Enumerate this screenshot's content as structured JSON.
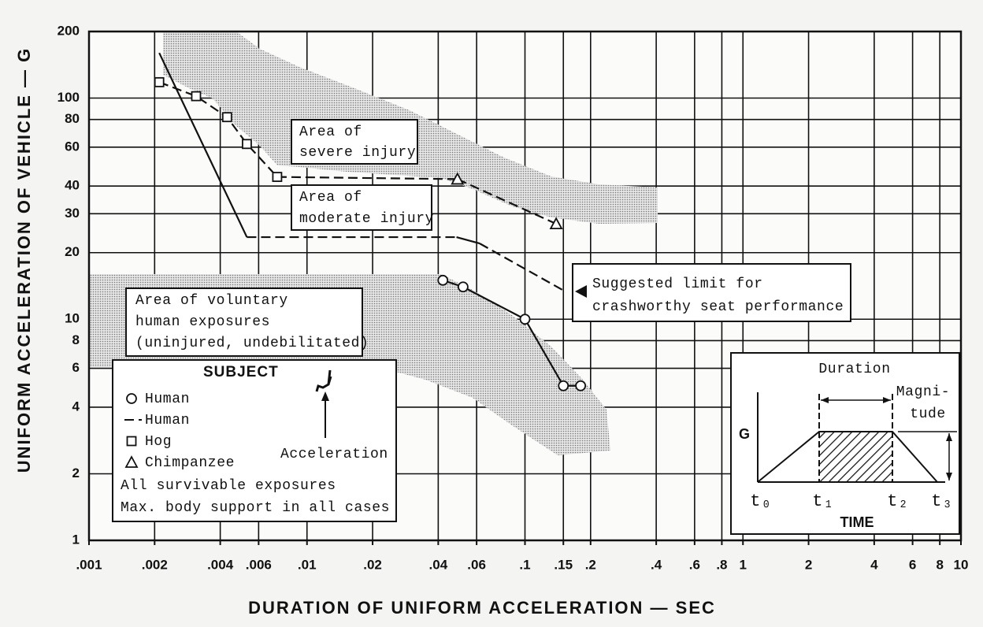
{
  "chart_data": {
    "type": "scatter",
    "xlabel": "DURATION OF UNIFORM ACCELERATION — SEC",
    "ylabel": "UNIFORM ACCELERATION OF VEHICLE — G",
    "xscale": "log",
    "yscale": "log",
    "grid": true,
    "xlim": [
      0.001,
      10
    ],
    "ylim": [
      1,
      200
    ],
    "xticks": [
      {
        "value": 0.001,
        "label": ".001"
      },
      {
        "value": 0.002,
        "label": ".002"
      },
      {
        "value": 0.004,
        "label": ".004"
      },
      {
        "value": 0.006,
        "label": ".006"
      },
      {
        "value": 0.01,
        "label": ".01"
      },
      {
        "value": 0.02,
        "label": ".02"
      },
      {
        "value": 0.04,
        "label": ".04"
      },
      {
        "value": 0.06,
        "label": ".06"
      },
      {
        "value": 0.1,
        "label": ".1"
      },
      {
        "value": 0.15,
        "label": ".15"
      },
      {
        "value": 0.2,
        "label": ".2"
      },
      {
        "value": 0.4,
        "label": ".4"
      },
      {
        "value": 0.6,
        "label": ".6"
      },
      {
        "value": 0.8,
        "label": ".8"
      },
      1,
      2,
      4,
      6,
      8,
      10
    ],
    "yticks": [
      1,
      2,
      4,
      6,
      8,
      10,
      20,
      30,
      40,
      60,
      80,
      100,
      200
    ],
    "series": [
      {
        "name": "Human",
        "marker": "circle",
        "line": "solid",
        "color": "#111111",
        "x": [
          0.042,
          0.052,
          0.1,
          0.15,
          0.18
        ],
        "values": [
          15,
          14,
          10,
          5,
          5
        ]
      },
      {
        "name": "Human",
        "marker": "none",
        "line": "dashed",
        "segment_styles": [
          "solid",
          "dashed",
          "solid",
          "dashed"
        ],
        "color": "#111111",
        "x": [
          0.0021,
          0.0053,
          0.0485,
          0.062,
          0.15
        ],
        "values": [
          160,
          23.5,
          23.5,
          22,
          13.5
        ]
      },
      {
        "name": "Hog",
        "marker": "square",
        "line": "dashed",
        "color": "#111111",
        "x": [
          0.0021,
          0.0031,
          0.0043,
          0.0053,
          0.0073
        ],
        "values": [
          118,
          102,
          82,
          62,
          44
        ]
      },
      {
        "name": "Chimpanzee",
        "marker": "triangle",
        "line": "dashed",
        "color": "#111111",
        "x": [
          0.049,
          0.139
        ],
        "values": [
          43,
          27
        ]
      }
    ],
    "legend": {
      "title": "SUBJECT",
      "notes": [
        "All survivable exposures",
        "Max. body support in all cases"
      ],
      "arrow_label": "Acceleration"
    },
    "annotations": {
      "severe": [
        "Area of",
        "severe injury"
      ],
      "moderate": [
        "Area of",
        "moderate injury"
      ],
      "limit": [
        "Suggested limit for",
        "crashworthy seat performance"
      ],
      "voluntary": [
        "Area of voluntary",
        "human exposures",
        "(uninjured, undebilitated)"
      ]
    },
    "inset": {
      "duration": "Duration",
      "magnitude": [
        "Magni-",
        "tude"
      ],
      "g": "G",
      "time": "TIME",
      "t": [
        "t₀",
        "t₁",
        "t₂",
        "t₃"
      ]
    }
  }
}
